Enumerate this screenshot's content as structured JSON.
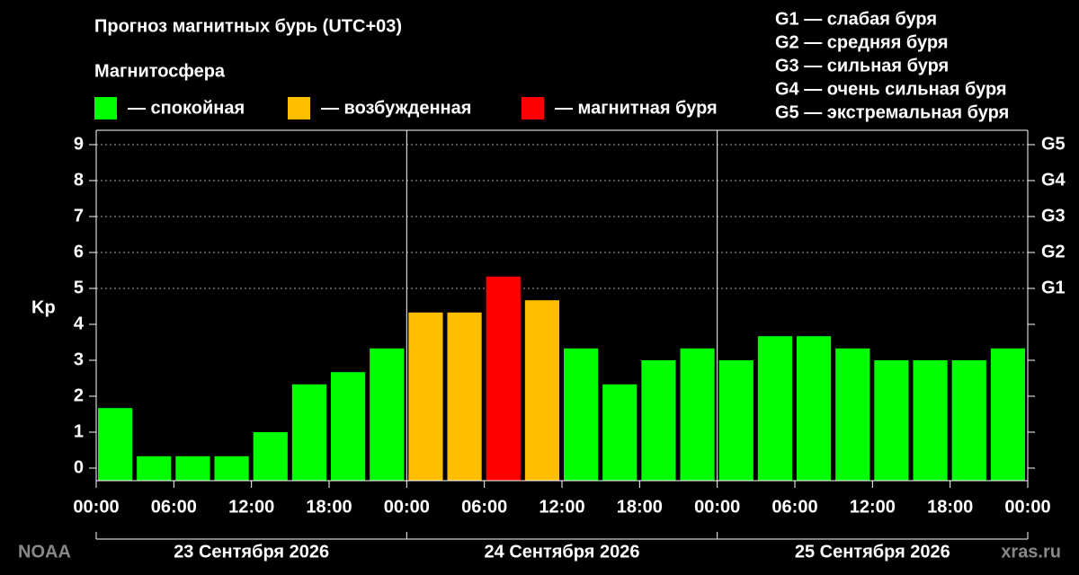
{
  "chart_data": {
    "type": "bar",
    "title": "Прогноз магнитных бурь (UTC+03)",
    "subtitle": "Магнитосфера",
    "legend": [
      {
        "label": "— спокойная",
        "color": "#00ff00"
      },
      {
        "label": "— возбужденная",
        "color": "#ffbf00"
      },
      {
        "label": "— магнитная буря",
        "color": "#ff0000"
      }
    ],
    "storm_scale": [
      "G1 — слабая буря",
      "G2 — средняя буря",
      "G3 — сильная буря",
      "G4 — очень сильная буря",
      "G5 — экстремальная буря"
    ],
    "y_label": "Kp",
    "days": [
      "23 Сентября 2026",
      "24 Сентября 2026",
      "25 Сентября 2026"
    ],
    "source": "NOAA",
    "site": "xras.ru",
    "x": [
      0,
      3,
      6,
      9,
      12,
      15,
      18,
      21,
      24,
      27,
      30,
      33,
      36,
      39,
      42,
      45,
      48,
      51,
      54,
      57,
      60,
      63,
      66,
      69
    ],
    "values": [
      1.67,
      0.33,
      0.33,
      0.33,
      1.0,
      2.33,
      2.67,
      3.33,
      4.33,
      4.33,
      5.33,
      4.67,
      3.33,
      2.33,
      3.0,
      3.33,
      3.0,
      3.67,
      3.67,
      3.33,
      3.0,
      3.0,
      3.0,
      3.33
    ],
    "colors": [
      "#00ff00",
      "#00ff00",
      "#00ff00",
      "#00ff00",
      "#00ff00",
      "#00ff00",
      "#00ff00",
      "#00ff00",
      "#ffbf00",
      "#ffbf00",
      "#ff0000",
      "#ffbf00",
      "#00ff00",
      "#00ff00",
      "#00ff00",
      "#00ff00",
      "#00ff00",
      "#00ff00",
      "#00ff00",
      "#00ff00",
      "#00ff00",
      "#00ff00",
      "#00ff00",
      "#00ff00"
    ],
    "xlim": [
      0,
      72
    ],
    "xticks": [
      {
        "value": 0,
        "label": "00:00"
      },
      {
        "value": 6,
        "label": "06:00"
      },
      {
        "value": 12,
        "label": "12:00"
      },
      {
        "value": 18,
        "label": "18:00"
      },
      {
        "value": 24,
        "label": "00:00"
      },
      {
        "value": 30,
        "label": "06:00"
      },
      {
        "value": 36,
        "label": "12:00"
      },
      {
        "value": 42,
        "label": "18:00"
      },
      {
        "value": 48,
        "label": "00:00"
      },
      {
        "value": 54,
        "label": "06:00"
      },
      {
        "value": 60,
        "label": "12:00"
      },
      {
        "value": 66,
        "label": "18:00"
      },
      {
        "value": 72,
        "label": "00:00"
      }
    ],
    "ylim": [
      -0.35,
      9.4
    ],
    "yticks": [
      0,
      1,
      2,
      3,
      4,
      5,
      6,
      7,
      8,
      9
    ],
    "y2ticks": [
      {
        "value": 5,
        "label": "G1"
      },
      {
        "value": 6,
        "label": "G2"
      },
      {
        "value": 7,
        "label": "G3"
      },
      {
        "value": 8,
        "label": "G4"
      },
      {
        "value": 9,
        "label": "G5"
      }
    ],
    "grid": true
  }
}
